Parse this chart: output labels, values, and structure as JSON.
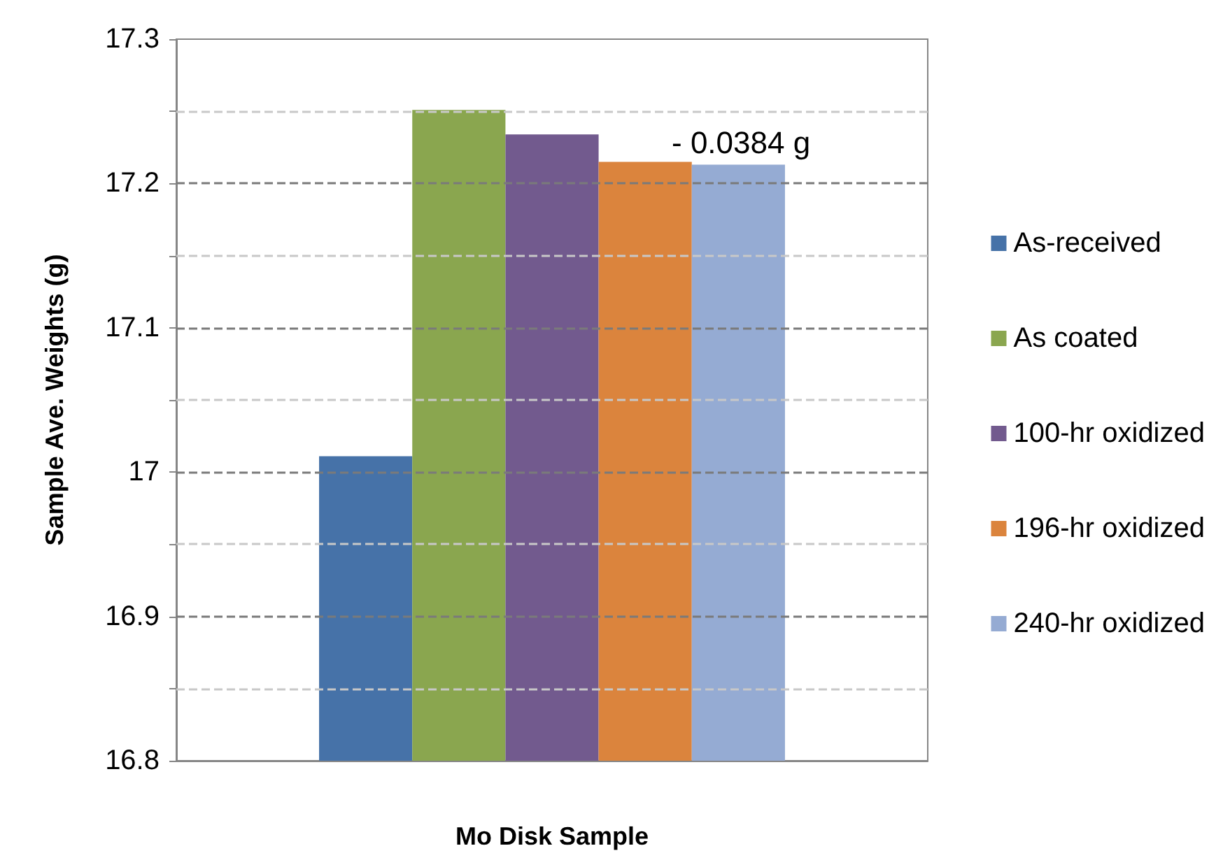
{
  "chart_data": {
    "type": "bar",
    "ylabel": "Sample Ave. Weights (g)",
    "xlabel": "Mo Disk Sample",
    "categories": [
      null
    ],
    "series": [
      {
        "name": "As-received",
        "color": "#4672a8",
        "values": [
          17.011
        ]
      },
      {
        "name": "As coated",
        "color": "#8aa64f",
        "values": [
          17.251
        ]
      },
      {
        "name": "100-hr oxidized",
        "color": "#725a8e",
        "values": [
          17.234
        ]
      },
      {
        "name": "196-hr oxidized",
        "color": "#db843d",
        "values": [
          17.215
        ]
      },
      {
        "name": "240-hr oxidized",
        "color": "#95abd3",
        "values": [
          17.213
        ]
      }
    ],
    "ylim": [
      16.8,
      17.3
    ],
    "yticks": [
      16.8,
      {
        "value": 16.85,
        "label": null
      },
      16.9,
      {
        "value": 16.95,
        "label": null
      },
      17,
      {
        "value": 17.05,
        "label": null
      },
      17.1,
      {
        "value": 17.15,
        "label": null
      },
      17.2,
      {
        "value": 17.25,
        "label": null
      },
      17.3
    ],
    "grid": "y",
    "legend": "right",
    "annotations": [
      "- 0.0384 g"
    ]
  }
}
